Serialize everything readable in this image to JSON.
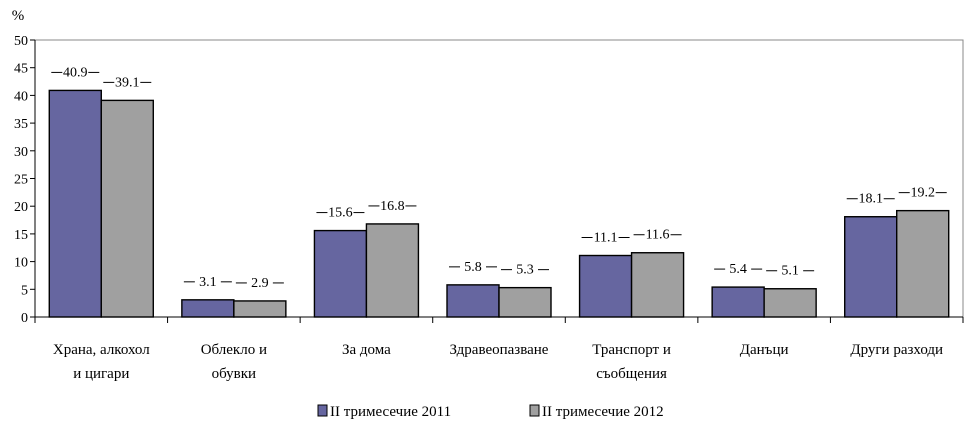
{
  "chart_data": {
    "type": "bar",
    "y_unit": "%",
    "ylim": [
      0,
      50
    ],
    "y_ticks": [
      0,
      5,
      10,
      15,
      20,
      25,
      30,
      35,
      40,
      45,
      50
    ],
    "grid": false,
    "legend_position": "bottom",
    "categories": [
      [
        "Храна, алкохол",
        "и цигари"
      ],
      [
        "Облекло и",
        "обувки"
      ],
      [
        "За дома"
      ],
      [
        "Здравеопазване"
      ],
      [
        "Транспорт и",
        "съобщения"
      ],
      [
        "Данъци"
      ],
      [
        "Други разходи"
      ]
    ],
    "series": [
      {
        "name": "II  тримесечие 2011",
        "color": "#6666a0",
        "values": [
          40.9,
          3.1,
          15.6,
          5.8,
          11.1,
          5.4,
          18.1
        ]
      },
      {
        "name": "II  тримесечие 2012",
        "color": "#a0a0a0",
        "values": [
          39.1,
          2.9,
          16.8,
          5.3,
          11.6,
          5.1,
          19.2
        ]
      }
    ]
  }
}
